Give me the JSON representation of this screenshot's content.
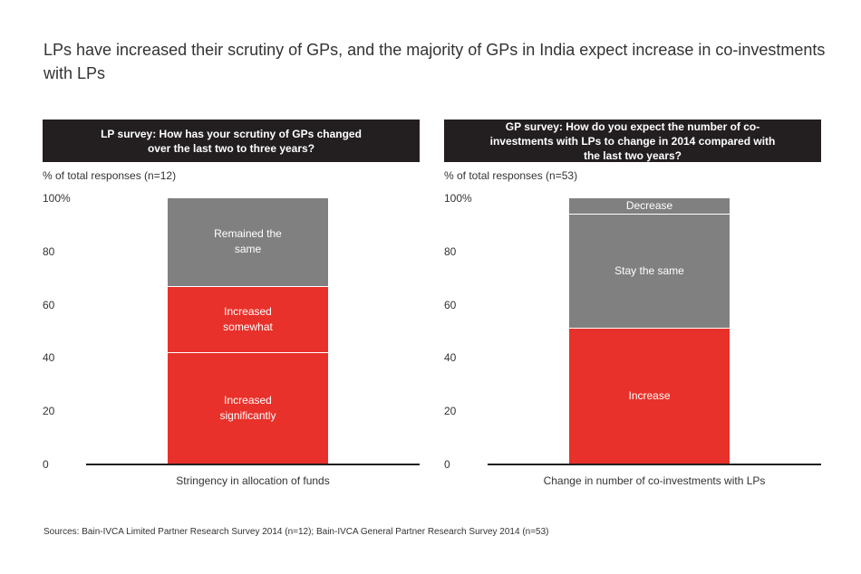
{
  "title": "LPs have increased their scrutiny of GPs, and the majority of GPs in India expect increase in co-investments with LPs",
  "colors": {
    "accent": "#e8312a",
    "bar_red": "#e8312a",
    "bar_gray": "#808080",
    "header_bg": "#231f20"
  },
  "chart_data": [
    {
      "type": "bar",
      "stacked": true,
      "title": "LP survey: How has your scrutiny of GPs changed over the last two to three years?",
      "ylabel": "% of total responses (n=12)",
      "xlabel": "",
      "categories": [
        "Stringency in allocation of funds"
      ],
      "ylim": [
        0,
        100
      ],
      "yticks": [
        "0",
        "20",
        "40",
        "60",
        "80",
        "100%"
      ],
      "series": [
        {
          "name": "Increased significantly",
          "label_lines": [
            "Increased",
            "significantly"
          ],
          "values": [
            41.7
          ],
          "color": "#e8312a"
        },
        {
          "name": "Increased somewhat",
          "label_lines": [
            "Increased",
            "somewhat"
          ],
          "values": [
            25.0
          ],
          "color": "#e8312a"
        },
        {
          "name": "Remained the same",
          "label_lines": [
            "Remained the",
            "same"
          ],
          "values": [
            33.3
          ],
          "color": "#808080"
        }
      ]
    },
    {
      "type": "bar",
      "stacked": true,
      "title": "GP survey: How do you expect the number of co-investments with LPs to change in 2014 compared with the last two years?",
      "ylabel": "% of total responses (n=53)",
      "xlabel": "",
      "categories": [
        "Change in number of co-investments with LPs"
      ],
      "ylim": [
        0,
        100
      ],
      "yticks": [
        "0",
        "20",
        "40",
        "60",
        "80",
        "100%"
      ],
      "series": [
        {
          "name": "Increase",
          "label_lines": [
            "Increase"
          ],
          "values": [
            51
          ],
          "color": "#e8312a"
        },
        {
          "name": "Stay the same",
          "label_lines": [
            "Stay the same"
          ],
          "values": [
            43
          ],
          "color": "#808080"
        },
        {
          "name": "Decrease",
          "label_lines": [
            "Decrease"
          ],
          "values": [
            6
          ],
          "color": "#808080"
        }
      ]
    }
  ],
  "source": "Sources: Bain-IVCA Limited Partner Research Survey 2014 (n=12); Bain-IVCA General Partner Research Survey 2014 (n=53)"
}
